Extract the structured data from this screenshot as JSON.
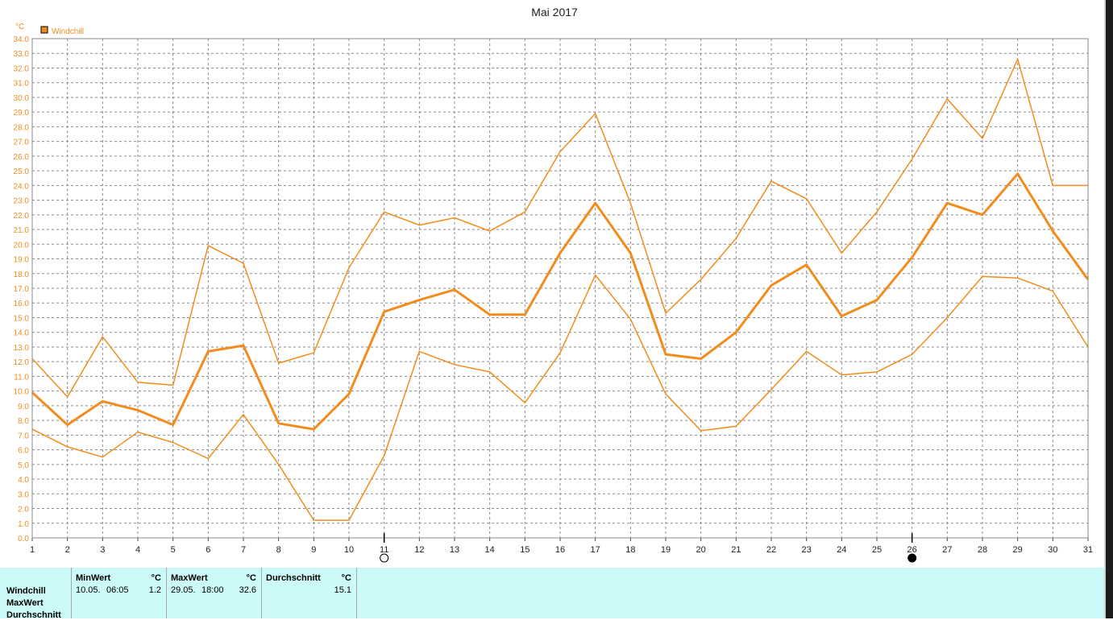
{
  "chart_data": {
    "type": "line",
    "title": "Mai 2017",
    "y_unit": "°C",
    "legend": [
      "Windchill"
    ],
    "legend_position": "top-left",
    "grid": true,
    "xlabel": "",
    "ylabel": "",
    "ylim": [
      0,
      34
    ],
    "y_ticks": [
      "0.0",
      "1.0",
      "2.0",
      "3.0",
      "4.0",
      "5.0",
      "6.0",
      "7.0",
      "8.0",
      "9.0",
      "10.0",
      "11.0",
      "12.0",
      "13.0",
      "14.0",
      "15.0",
      "16.0",
      "17.0",
      "18.0",
      "19.0",
      "20.0",
      "21.0",
      "22.0",
      "23.0",
      "24.0",
      "25.0",
      "26.0",
      "27.0",
      "28.0",
      "29.0",
      "30.0",
      "31.0",
      "32.0",
      "33.0",
      "34.0"
    ],
    "x": [
      1,
      2,
      3,
      4,
      5,
      6,
      7,
      8,
      9,
      10,
      11,
      12,
      13,
      14,
      15,
      16,
      17,
      18,
      19,
      20,
      21,
      22,
      23,
      24,
      25,
      26,
      27,
      28,
      29,
      30,
      31
    ],
    "moon_markers": [
      {
        "day": 11,
        "phase": "full-moon"
      },
      {
        "day": 26,
        "phase": "new-moon"
      }
    ],
    "color": "#f28c1c",
    "series": [
      {
        "values": [
          12.2,
          9.6,
          13.7,
          10.6,
          10.4,
          19.9,
          18.7,
          11.9,
          12.6,
          18.4,
          22.2,
          21.3,
          21.8,
          20.9,
          22.2,
          26.3,
          28.9,
          22.8,
          15.3,
          17.6,
          20.4,
          24.3,
          23.1,
          19.4,
          22.2,
          25.8,
          29.9,
          27.2,
          32.6,
          24.0,
          24.0
        ],
        "line_width": 1.5
      },
      {
        "values": [
          9.9,
          7.7,
          9.3,
          8.7,
          7.7,
          12.7,
          13.1,
          7.8,
          7.4,
          9.8,
          15.4,
          16.2,
          16.9,
          15.2,
          15.2,
          19.4,
          22.8,
          19.4,
          12.5,
          12.2,
          14.0,
          17.2,
          18.6,
          15.1,
          16.2,
          19.1,
          22.8,
          22.0,
          24.8,
          20.9,
          17.6
        ],
        "line_width": 3
      },
      {
        "values": [
          7.4,
          6.2,
          5.5,
          7.2,
          6.5,
          5.4,
          8.4,
          5.0,
          1.2,
          1.2,
          5.6,
          12.7,
          11.8,
          11.3,
          9.2,
          12.6,
          17.9,
          14.9,
          9.8,
          7.3,
          7.6,
          10.1,
          12.7,
          11.1,
          11.3,
          12.5,
          15.0,
          17.8,
          17.7,
          16.8,
          13.0
        ],
        "line_width": 1.5
      }
    ]
  },
  "stats": {
    "row_labels": [
      "Windchill",
      "MaxWert",
      "Durchschnitt"
    ],
    "min": {
      "header": "MinWert",
      "unit": "°C",
      "date": "10.05.",
      "time": "06:05",
      "value": "1.2"
    },
    "max": {
      "header": "MaxWert",
      "unit": "°C",
      "date": "29.05.",
      "time": "18:00",
      "value": "32.6"
    },
    "avg": {
      "header": "Durchschnitt",
      "unit": "°C",
      "value": "15.1"
    }
  }
}
